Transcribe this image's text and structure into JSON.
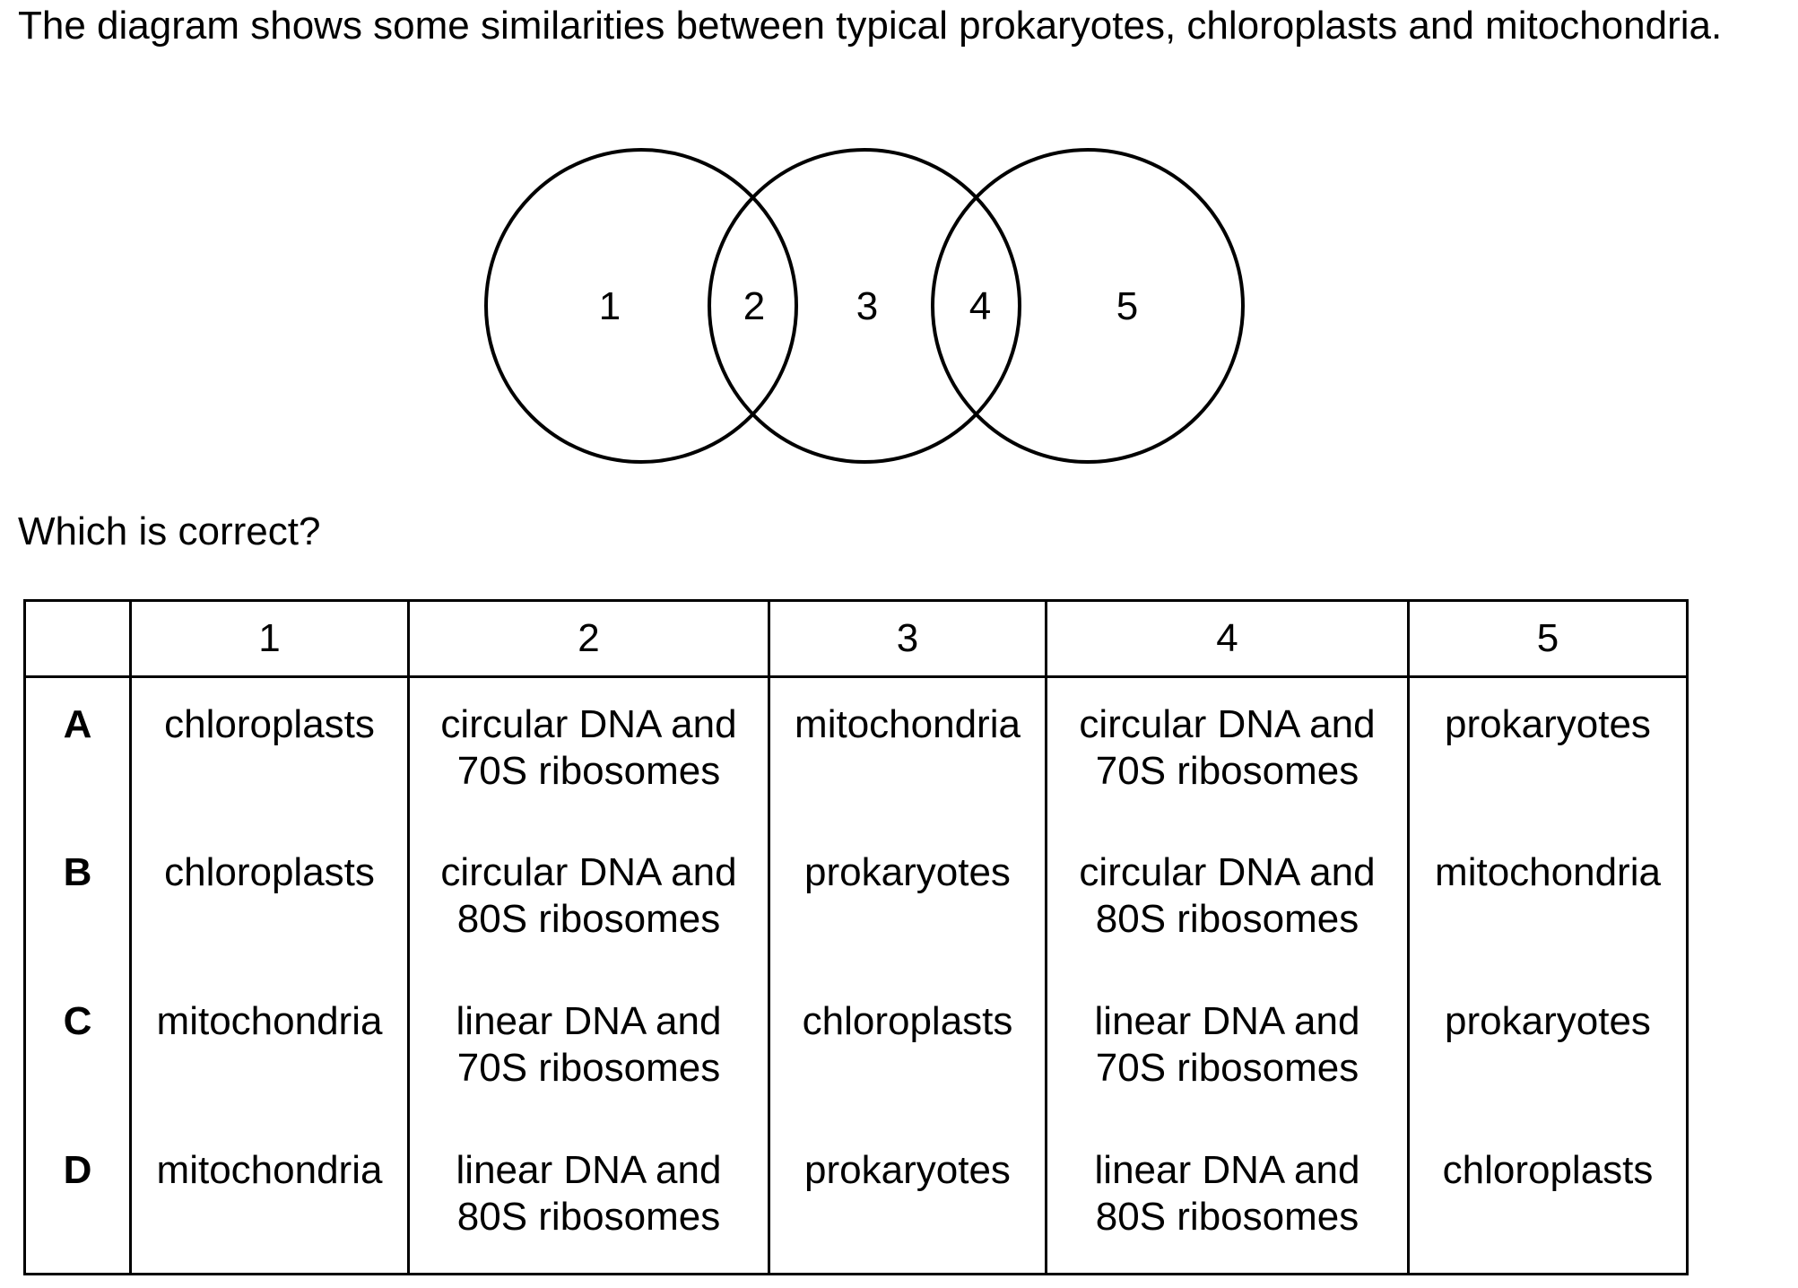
{
  "intro": "The diagram shows some similarities between typical prokaryotes, chloroplasts and mitochondria.",
  "venn": {
    "regions": [
      "1",
      "2",
      "3",
      "4",
      "5"
    ]
  },
  "question": "Which is correct?",
  "table": {
    "headers": [
      "",
      "1",
      "2",
      "3",
      "4",
      "5"
    ],
    "rows": [
      {
        "key": "A",
        "c1": "chloroplasts",
        "c2": [
          "circular DNA and",
          "70S ribosomes"
        ],
        "c3": "mitochondria",
        "c4": [
          "circular DNA and",
          "70S ribosomes"
        ],
        "c5": "prokaryotes"
      },
      {
        "key": "B",
        "c1": "chloroplasts",
        "c2": [
          "circular DNA and",
          "80S ribosomes"
        ],
        "c3": "prokaryotes",
        "c4": [
          "circular DNA and",
          "80S ribosomes"
        ],
        "c5": "mitochondria"
      },
      {
        "key": "C",
        "c1": "mitochondria",
        "c2": [
          "linear DNA and",
          "70S ribosomes"
        ],
        "c3": "chloroplasts",
        "c4": [
          "linear DNA and",
          "70S ribosomes"
        ],
        "c5": "prokaryotes"
      },
      {
        "key": "D",
        "c1": "mitochondria",
        "c2": [
          "linear DNA and",
          "80S ribosomes"
        ],
        "c3": "prokaryotes",
        "c4": [
          "linear DNA and",
          "80S ribosomes"
        ],
        "c5": "chloroplasts"
      }
    ]
  }
}
